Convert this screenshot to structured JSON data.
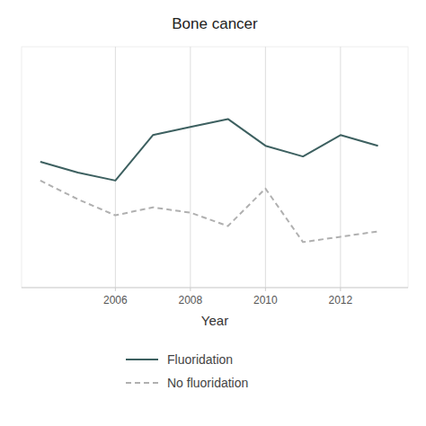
{
  "chart_data": {
    "type": "line",
    "title": "Bone cancer",
    "xlabel": "Year",
    "x": [
      2004,
      2005,
      2006,
      2007,
      2008,
      2009,
      2010,
      2011,
      2012,
      2013
    ],
    "series": [
      {
        "name": "Fluoridation",
        "color": "#3d6060",
        "line_style": "solid",
        "values": [
          0.72,
          0.68,
          0.65,
          0.82,
          0.85,
          0.88,
          0.78,
          0.74,
          0.82,
          0.78
        ]
      },
      {
        "name": "No fluoridation",
        "color": "#b0b0b0",
        "line_style": "dashed",
        "values": [
          0.65,
          0.58,
          0.52,
          0.55,
          0.53,
          0.48,
          0.62,
          0.42,
          0.44,
          0.46
        ]
      }
    ],
    "xlim": [
      2003.5,
      2013.8
    ],
    "xticks": [
      2006,
      2008,
      2010,
      2012
    ],
    "ylim": [
      0.25,
      1.15
    ],
    "yticks": [],
    "grid": true,
    "tick_labels": "x",
    "legend": "bottom"
  }
}
